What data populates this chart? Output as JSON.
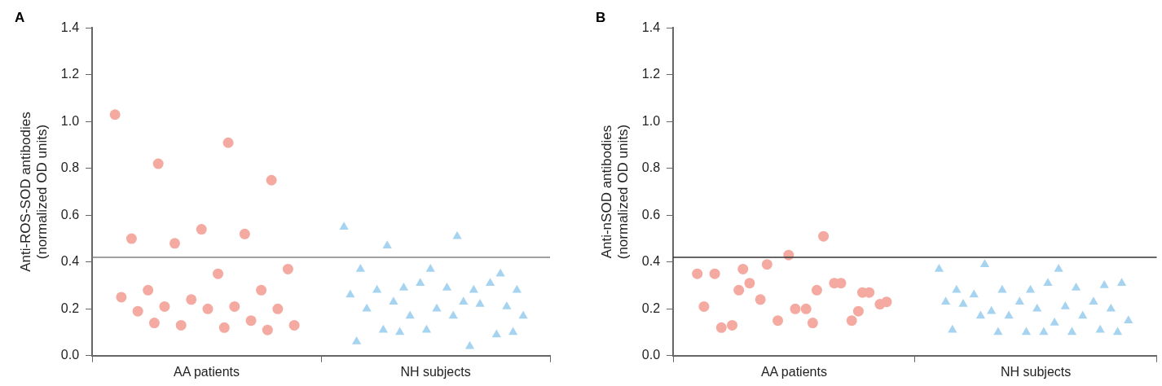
{
  "chart_data": [
    {
      "type": "scatter",
      "title": "A",
      "ylabel": "Anti-ROS-SOD antibodies\n(normalized OD units)",
      "categories": [
        "AA patients",
        "NH subjects"
      ],
      "ylim": [
        0,
        1.4
      ],
      "yticks": [
        {
          "value": 0,
          "label": "0.0"
        },
        {
          "value": 0.2,
          "label": "0.2"
        },
        {
          "value": 0.4,
          "label": "0.4"
        },
        {
          "value": 0.6,
          "label": "0.6"
        },
        {
          "value": 0.8,
          "label": "0.8"
        },
        {
          "value": 1,
          "label": "1.0"
        },
        {
          "value": 1.2,
          "label": "1.2"
        },
        {
          "value": 1.4,
          "label": "1.4"
        }
      ],
      "grid": false,
      "ref_lines": [
        {
          "axis": "y",
          "value": 0.42,
          "label": null,
          "color": "#808080"
        }
      ],
      "series": [
        {
          "color": "#f4aaa0",
          "marker": "circle",
          "x": [
            "AA patients",
            "AA patients",
            "AA patients",
            "AA patients",
            "AA patients",
            "AA patients",
            "AA patients",
            "AA patients",
            "AA patients",
            "AA patients",
            "AA patients",
            "AA patients",
            "AA patients",
            "AA patients",
            "AA patients",
            "AA patients",
            "AA patients",
            "AA patients",
            "AA patients",
            "AA patients",
            "AA patients",
            "AA patients",
            "AA patients",
            "AA patients",
            "AA patients"
          ],
          "values": [
            1.03,
            0.91,
            0.82,
            0.75,
            0.54,
            0.5,
            0.52,
            0.48,
            0.37,
            0.35,
            0.28,
            0.28,
            0.24,
            0.25,
            0.21,
            0.21,
            0.2,
            0.2,
            0.19,
            0.15,
            0.13,
            0.13,
            0.12,
            0.14,
            0.11
          ]
        },
        {
          "color": "#a6d4f0",
          "marker": "triangle",
          "x": [
            "NH subjects",
            "NH subjects",
            "NH subjects",
            "NH subjects",
            "NH subjects",
            "NH subjects",
            "NH subjects",
            "NH subjects",
            "NH subjects",
            "NH subjects",
            "NH subjects",
            "NH subjects",
            "NH subjects",
            "NH subjects",
            "NH subjects",
            "NH subjects",
            "NH subjects",
            "NH subjects",
            "NH subjects",
            "NH subjects",
            "NH subjects",
            "NH subjects",
            "NH subjects",
            "NH subjects",
            "NH subjects",
            "NH subjects",
            "NH subjects",
            "NH subjects",
            "NH subjects",
            "NH subjects"
          ],
          "values": [
            0.55,
            0.51,
            0.47,
            0.35,
            0.37,
            0.37,
            0.28,
            0.29,
            0.28,
            0.29,
            0.28,
            0.31,
            0.31,
            0.26,
            0.23,
            0.23,
            0.21,
            0.2,
            0.2,
            0.22,
            0.17,
            0.17,
            0.17,
            0.11,
            0.09,
            0.11,
            0.06,
            0.04,
            0.1,
            0.1
          ]
        }
      ]
    },
    {
      "type": "scatter",
      "title": "B",
      "ylabel": "Anti-nSOD antibodies\n(normalized OD units)",
      "categories": [
        "AA patients",
        "NH subjects"
      ],
      "ylim": [
        0,
        1.4
      ],
      "yticks": [
        {
          "value": 0,
          "label": "0.0"
        },
        {
          "value": 0.2,
          "label": "0.2"
        },
        {
          "value": 0.4,
          "label": "0.4"
        },
        {
          "value": 0.6,
          "label": "0.6"
        },
        {
          "value": 0.8,
          "label": "0.8"
        },
        {
          "value": 1,
          "label": "1.0"
        },
        {
          "value": 1.2,
          "label": "1.2"
        },
        {
          "value": 1.4,
          "label": "1.4"
        }
      ],
      "grid": false,
      "ref_lines": [
        {
          "axis": "y",
          "value": 0.42,
          "label": null,
          "color": "#333333"
        }
      ],
      "series": [
        {
          "color": "#f4aaa0",
          "marker": "circle",
          "x": [
            "AA patients",
            "AA patients",
            "AA patients",
            "AA patients",
            "AA patients",
            "AA patients",
            "AA patients",
            "AA patients",
            "AA patients",
            "AA patients",
            "AA patients",
            "AA patients",
            "AA patients",
            "AA patients",
            "AA patients",
            "AA patients",
            "AA patients",
            "AA patients",
            "AA patients",
            "AA patients",
            "AA patients",
            "AA patients",
            "AA patients",
            "AA patients",
            "AA patients"
          ],
          "values": [
            0.35,
            0.28,
            0.37,
            0.27,
            0.43,
            0.35,
            0.31,
            0.24,
            0.22,
            0.2,
            0.13,
            0.15,
            0.15,
            0.21,
            0.51,
            0.31,
            0.27,
            0.2,
            0.12,
            0.31,
            0.39,
            0.23,
            0.14,
            0.28,
            0.19
          ]
        },
        {
          "color": "#a6d4f0",
          "marker": "triangle",
          "x": [
            "NH subjects",
            "NH subjects",
            "NH subjects",
            "NH subjects",
            "NH subjects",
            "NH subjects",
            "NH subjects",
            "NH subjects",
            "NH subjects",
            "NH subjects",
            "NH subjects",
            "NH subjects",
            "NH subjects",
            "NH subjects",
            "NH subjects",
            "NH subjects",
            "NH subjects",
            "NH subjects",
            "NH subjects",
            "NH subjects",
            "NH subjects",
            "NH subjects",
            "NH subjects",
            "NH subjects",
            "NH subjects",
            "NH subjects",
            "NH subjects",
            "NH subjects",
            "NH subjects",
            "NH subjects",
            "NH subjects"
          ],
          "values": [
            0.37,
            0.37,
            0.39,
            0.3,
            0.28,
            0.28,
            0.29,
            0.28,
            0.31,
            0.31,
            0.26,
            0.23,
            0.23,
            0.23,
            0.21,
            0.19,
            0.2,
            0.2,
            0.22,
            0.17,
            0.17,
            0.15,
            0.14,
            0.17,
            0.11,
            0.1,
            0.11,
            0.1,
            0.1,
            0.1,
            0.1
          ]
        }
      ]
    }
  ]
}
